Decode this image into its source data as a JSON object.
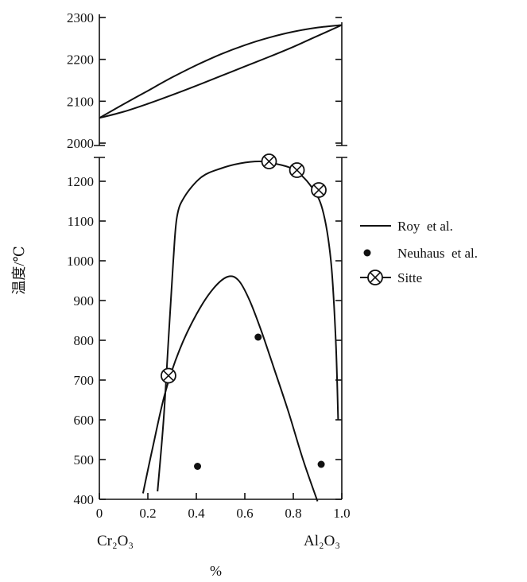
{
  "chart_data": {
    "type": "line",
    "ylabel": "温度/℃",
    "xlabel": "%",
    "x_start_label": "Cr₂O₃",
    "x_end_label": "Al₂O₃",
    "xlim": [
      0,
      1.0
    ],
    "x_ticks": [
      {
        "value": 0,
        "label": "0"
      },
      {
        "value": 0.2,
        "label": "0.2"
      },
      {
        "value": 0.4,
        "label": "0.4"
      },
      {
        "value": 0.6,
        "label": "0.6"
      },
      {
        "value": 0.8,
        "label": "0.8"
      },
      {
        "value": 1.0,
        "label": "1.0"
      }
    ],
    "upper_panel": {
      "ylim": [
        1980,
        2300
      ],
      "y_ticks": [
        {
          "value": 2000,
          "label": "2000"
        },
        {
          "value": 2100,
          "label": "2100"
        },
        {
          "value": 2200,
          "label": "2200"
        },
        {
          "value": 2300,
          "label": "2300"
        }
      ],
      "series": [
        {
          "id": "liquidus",
          "x": [
            0,
            0.1,
            0.2,
            0.3,
            0.4,
            0.5,
            0.6,
            0.7,
            0.8,
            0.9,
            1.0
          ],
          "y": [
            2060,
            2093,
            2125,
            2157,
            2186,
            2212,
            2234,
            2252,
            2266,
            2276,
            2282
          ]
        },
        {
          "id": "solidus",
          "x": [
            0,
            0.1,
            0.2,
            0.3,
            0.4,
            0.5,
            0.6,
            0.7,
            0.8,
            0.9,
            1.0
          ],
          "y": [
            2060,
            2075,
            2094,
            2115,
            2137,
            2160,
            2183,
            2206,
            2230,
            2256,
            2282
          ]
        }
      ]
    },
    "lower_panel": {
      "ylim": [
        400,
        1260
      ],
      "y_ticks": [
        {
          "value": 400,
          "label": "400"
        },
        {
          "value": 500,
          "label": "500"
        },
        {
          "value": 600,
          "label": "600"
        },
        {
          "value": 700,
          "label": "700"
        },
        {
          "value": 800,
          "label": "800"
        },
        {
          "value": 900,
          "label": "900"
        },
        {
          "value": 1000,
          "label": "1000"
        },
        {
          "value": 1100,
          "label": "1100"
        },
        {
          "value": 1200,
          "label": "1200"
        }
      ],
      "series": [
        {
          "id": "roy-outer",
          "x": [
            0.24,
            0.265,
            0.285,
            0.305,
            0.32,
            0.35,
            0.42,
            0.5,
            0.58,
            0.66,
            0.72,
            0.8,
            0.87,
            0.92,
            0.955,
            0.975,
            0.985
          ],
          "y": [
            420,
            600,
            800,
            1000,
            1110,
            1160,
            1210,
            1232,
            1245,
            1250,
            1245,
            1230,
            1190,
            1130,
            1000,
            800,
            600
          ]
        },
        {
          "id": "roy-inner",
          "x": [
            0.18,
            0.22,
            0.27,
            0.33,
            0.4,
            0.47,
            0.53,
            0.575,
            0.62,
            0.67,
            0.72,
            0.78,
            0.84,
            0.9
          ],
          "y": [
            415,
            530,
            665,
            775,
            865,
            930,
            960,
            950,
            900,
            820,
            730,
            620,
            500,
            395
          ]
        }
      ],
      "neuhaus_points": [
        {
          "x": 0.405,
          "y": 483
        },
        {
          "x": 0.655,
          "y": 808
        },
        {
          "x": 0.915,
          "y": 488
        }
      ],
      "sitte_points": [
        {
          "x": 0.285,
          "y": 711
        },
        {
          "x": 0.7,
          "y": 1250
        },
        {
          "x": 0.815,
          "y": 1228
        },
        {
          "x": 0.905,
          "y": 1178
        }
      ]
    },
    "legend": {
      "position": "right",
      "items": [
        {
          "symbol": "line",
          "label": "Roy  et al."
        },
        {
          "symbol": "filled-dot",
          "label": "Neuhaus  et al."
        },
        {
          "symbol": "circle-cross",
          "label": "Sitte"
        }
      ]
    }
  }
}
